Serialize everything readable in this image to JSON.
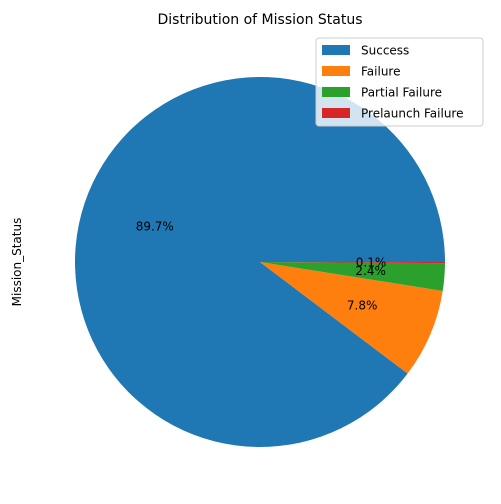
{
  "chart_data": {
    "type": "pie",
    "title": "Distribution of Mission Status",
    "ylabel": "Mission_Status",
    "labels": [
      "Success",
      "Failure",
      "Partial Failure",
      "Prelaunch Failure"
    ],
    "values": [
      89.7,
      7.8,
      2.4,
      0.1
    ],
    "pct_labels": [
      "89.7%",
      "7.8%",
      "2.4%",
      "0.1%"
    ],
    "colors": [
      "#1f77b4",
      "#ff7f0e",
      "#2ca02c",
      "#d62728"
    ],
    "start_angle_deg": 0,
    "direction": "counterclockwise",
    "legend_position": "top-right"
  }
}
